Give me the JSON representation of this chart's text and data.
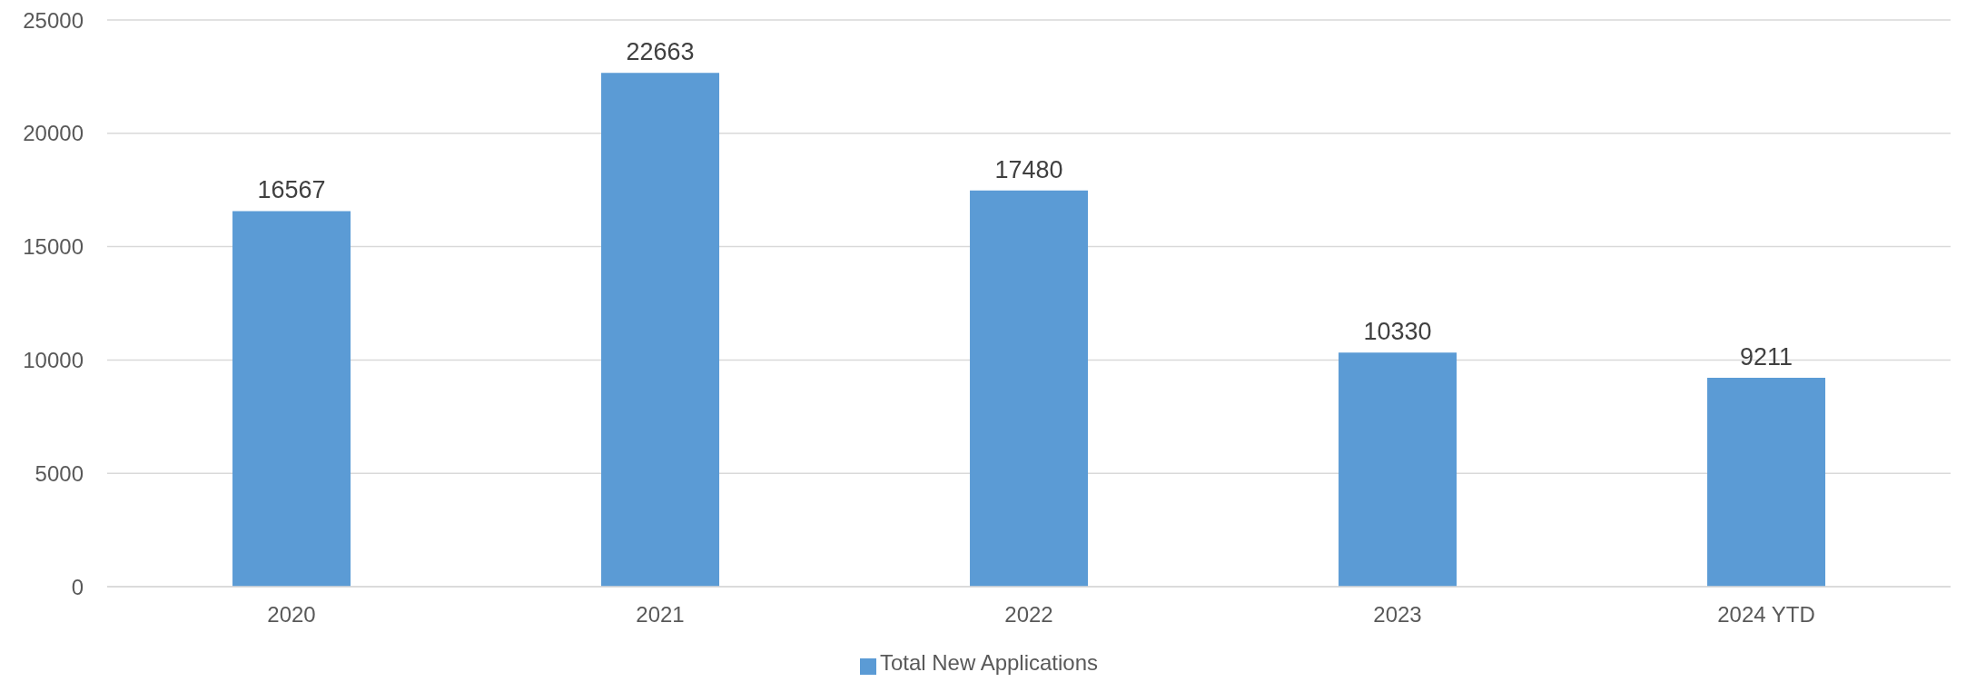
{
  "chart_data": {
    "type": "bar",
    "categories": [
      "2020",
      "2021",
      "2022",
      "2023",
      "2024 YTD"
    ],
    "series": [
      {
        "name": "Total New Applications",
        "color": "#5b9bd5",
        "values": [
          16567,
          22663,
          17480,
          10330,
          9211
        ]
      }
    ],
    "ylim": [
      0,
      25000
    ],
    "yticks": [
      0,
      5000,
      10000,
      15000,
      20000,
      25000
    ],
    "grid": "y",
    "legend": "bottom",
    "data_labels": true
  }
}
